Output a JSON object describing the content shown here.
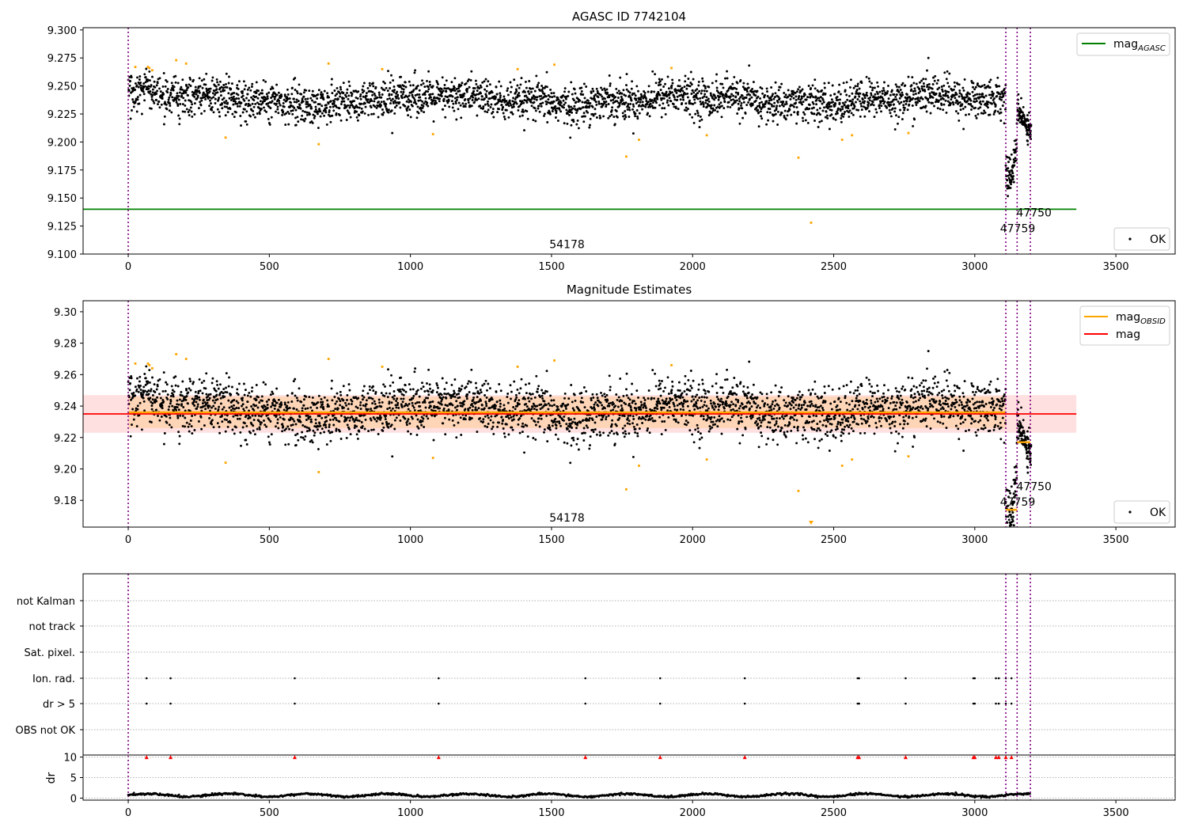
{
  "chart_data": [
    {
      "type": "scatter",
      "title": "AGASC ID 7742104",
      "xlim": [
        -160,
        3710
      ],
      "ylim": [
        9.1,
        9.302
      ],
      "xticks": [
        "0",
        "500",
        "1000",
        "1500",
        "2000",
        "2500",
        "3000",
        "3500"
      ],
      "xtick_values": [
        0,
        500,
        1000,
        1500,
        2000,
        2500,
        3000,
        3500
      ],
      "yticks": [
        "9.100",
        "9.125",
        "9.150",
        "9.175",
        "9.200",
        "9.225",
        "9.250",
        "9.275",
        "9.300"
      ],
      "ytick_values": [
        9.1,
        9.125,
        9.15,
        9.175,
        9.2,
        9.225,
        9.25,
        9.275,
        9.3
      ],
      "legend_top": {
        "placement": "upper right",
        "entries": [
          {
            "label": "mag",
            "subscript": "AGASC",
            "color": "#008000",
            "kind": "line"
          }
        ]
      },
      "legend_bottom": {
        "placement": "lower right",
        "entries": [
          {
            "label": "OK",
            "color": "#000000",
            "kind": "dot"
          }
        ]
      },
      "hline": {
        "name": "mag_AGASC",
        "y": 9.14,
        "x_range": [
          -160,
          3360
        ],
        "color": "#008000"
      },
      "obsid_lines": [
        0,
        3110,
        3150,
        3197
      ],
      "obsid_labels": [
        {
          "text": "54178",
          "x": 1555,
          "y": 9.109
        },
        {
          "text": "47750",
          "x": 3210,
          "y": 9.137
        },
        {
          "text": "47759",
          "x": 3152,
          "y": 9.123
        }
      ],
      "series": [
        {
          "name": "OK",
          "color": "#000000",
          "note": "~3200 dense points around 9.238 (x 0–3110), dip to ~9.15 near x 3120–3150, ~9.215 for x 3150–3200"
        },
        {
          "name": "outliers",
          "color": "#FFA500",
          "x": [
            25,
            70,
            75,
            85,
            170,
            205,
            345,
            675,
            710,
            900,
            1080,
            1380,
            1510,
            1765,
            1810,
            1925,
            2050,
            2375,
            2420,
            2530,
            2565,
            2765
          ],
          "y": [
            9.267,
            9.267,
            9.266,
            9.264,
            9.273,
            9.27,
            9.204,
            9.198,
            9.27,
            9.265,
            9.207,
            9.265,
            9.269,
            9.187,
            9.202,
            9.266,
            9.206,
            9.186,
            9.128,
            9.202,
            9.206,
            9.208
          ]
        }
      ]
    },
    {
      "type": "scatter",
      "title": "Magnitude Estimates",
      "xlim": [
        -160,
        3710
      ],
      "ylim": [
        9.163,
        9.307
      ],
      "xticks": [
        "0",
        "500",
        "1000",
        "1500",
        "2000",
        "2500",
        "3000",
        "3500"
      ],
      "xtick_values": [
        0,
        500,
        1000,
        1500,
        2000,
        2500,
        3000,
        3500
      ],
      "yticks": [
        "9.18",
        "9.20",
        "9.22",
        "9.24",
        "9.26",
        "9.28",
        "9.30"
      ],
      "ytick_values": [
        9.18,
        9.2,
        9.22,
        9.24,
        9.26,
        9.28,
        9.3
      ],
      "legend_top": {
        "placement": "upper right",
        "entries": [
          {
            "label": "mag",
            "subscript": "OBSID",
            "color": "#FFA500",
            "kind": "line"
          },
          {
            "label": "mag",
            "subscript": "",
            "color": "#FF0000",
            "kind": "line"
          }
        ]
      },
      "legend_bottom": {
        "placement": "lower right",
        "entries": [
          {
            "label": "OK",
            "color": "#000000",
            "kind": "dot"
          }
        ]
      },
      "mag_line": {
        "y": 9.235,
        "band": [
          9.223,
          9.247
        ],
        "x_range": [
          -160,
          3360
        ]
      },
      "obsid_segments": [
        {
          "x": [
            0,
            3110
          ],
          "y": 9.236,
          "band": [
            9.226,
            9.246
          ]
        },
        {
          "x": [
            3110,
            3150
          ],
          "y": 9.174,
          "band": [
            9.172,
            9.176
          ]
        },
        {
          "x": [
            3150,
            3197
          ],
          "y": 9.217,
          "band": [
            9.216,
            9.218
          ]
        }
      ],
      "obsid_lines": [
        0,
        3110,
        3150,
        3197
      ],
      "obsid_labels": [
        {
          "text": "54178",
          "x": 1555,
          "y": 9.169
        },
        {
          "text": "47750",
          "x": 3210,
          "y": 9.189
        },
        {
          "text": "47759",
          "x": 3152,
          "y": 9.179
        }
      ],
      "series": [
        {
          "name": "OK",
          "color": "#000000",
          "note": "same light curve as top panel"
        },
        {
          "name": "outliers",
          "color": "#FFA500",
          "x": [
            25,
            70,
            75,
            85,
            170,
            205,
            345,
            675,
            710,
            900,
            1080,
            1380,
            1510,
            1765,
            1810,
            1925,
            2050,
            2375,
            2530,
            2565,
            2765
          ],
          "y": [
            9.267,
            9.267,
            9.266,
            9.264,
            9.273,
            9.27,
            9.204,
            9.198,
            9.27,
            9.265,
            9.207,
            9.265,
            9.269,
            9.187,
            9.202,
            9.266,
            9.206,
            9.186,
            9.202,
            9.206,
            9.208
          ]
        }
      ]
    },
    {
      "type": "scatter",
      "title": "",
      "xlim": [
        -160,
        3710
      ],
      "categories": [
        "not Kalman",
        "not track",
        "Sat. pixel.",
        "Ion. rad.",
        "dr > 5",
        "OBS not OK"
      ],
      "flag_x": [
        65,
        150,
        590,
        1100,
        1620,
        1885,
        2185,
        2585,
        2590,
        2755,
        2995,
        3000,
        3075,
        3085,
        3110,
        3130
      ],
      "flag_rows": [
        "Ion. rad.",
        "dr > 5"
      ]
    },
    {
      "type": "line",
      "title": "",
      "xlim": [
        -160,
        3710
      ],
      "ylim": [
        -0.5,
        10.5
      ],
      "ylabel": "dr",
      "yticks": [
        "0",
        "5",
        "10"
      ],
      "ytick_values": [
        0,
        5,
        10
      ],
      "xticks": [
        "0",
        "500",
        "1000",
        "1500",
        "2000",
        "2500",
        "3000",
        "3500"
      ],
      "xtick_values": [
        0,
        500,
        1000,
        1500,
        2000,
        2500,
        3000,
        3500
      ],
      "series": [
        {
          "name": "dr",
          "color": "#000000",
          "note": "dense points oscillating between 0.2 and 1.2 for x 0–3197"
        },
        {
          "name": "dr > 5",
          "color": "#FF0000",
          "marker": "triangle",
          "y": 10,
          "x": [
            65,
            150,
            590,
            1100,
            1620,
            1885,
            2185,
            2585,
            2590,
            2755,
            2995,
            3000,
            3075,
            3085,
            3110,
            3130
          ]
        }
      ]
    }
  ]
}
